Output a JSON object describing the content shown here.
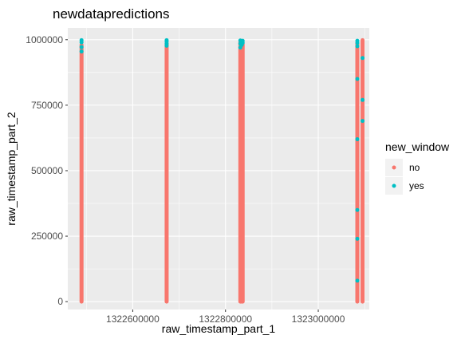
{
  "chart_data": {
    "type": "scatter",
    "title": "newdatapredictions",
    "xlabel": "raw_timestamp_part_1",
    "ylabel": "raw_timestamp_part_2",
    "xlim": [
      1322460000,
      1323110000
    ],
    "ylim": [
      -30000,
      1045000
    ],
    "x_ticks": [
      1322600000,
      1322800000,
      1323000000
    ],
    "x_tick_labels": [
      "1322600000",
      "1322800000",
      "1323000000"
    ],
    "y_ticks": [
      0,
      250000,
      500000,
      750000,
      1000000
    ],
    "y_tick_labels": [
      "0",
      "250000",
      "500000",
      "750000",
      "1000000"
    ],
    "grid": true,
    "legend": {
      "title": "new_window",
      "placement": "right",
      "entries": [
        {
          "label": "no",
          "color": "#F8766D"
        },
        {
          "label": "yes",
          "color": "#00BFC4"
        }
      ]
    },
    "series": [
      {
        "name": "no",
        "color": "#F8766D",
        "columns": [
          {
            "x": 1322489590,
            "y_min": 0,
            "y_max": 980000
          },
          {
            "x": 1322673100,
            "y_min": 0,
            "y_max": 985000
          },
          {
            "x": 1322832000,
            "y_min": 0,
            "y_max": 990000
          },
          {
            "x": 1322835000,
            "y_min": 0,
            "y_max": 985000
          },
          {
            "x": 1322837000,
            "y_min": 0,
            "y_max": 982000
          },
          {
            "x": 1323084200,
            "y_min": 0,
            "y_max": 985000
          },
          {
            "x": 1323095500,
            "y_min": 0,
            "y_max": 998000
          }
        ]
      },
      {
        "name": "yes",
        "color": "#00BFC4",
        "points": [
          {
            "x": 1322489590,
            "y": 998000
          },
          {
            "x": 1322489590,
            "y": 990000
          },
          {
            "x": 1322489590,
            "y": 972000
          },
          {
            "x": 1322489590,
            "y": 955000
          },
          {
            "x": 1322673100,
            "y": 998000
          },
          {
            "x": 1322673100,
            "y": 993000
          },
          {
            "x": 1322673100,
            "y": 985000
          },
          {
            "x": 1322673100,
            "y": 977000
          },
          {
            "x": 1322832000,
            "y": 997000
          },
          {
            "x": 1322832000,
            "y": 985000
          },
          {
            "x": 1322832000,
            "y": 970000
          },
          {
            "x": 1322835000,
            "y": 994000
          },
          {
            "x": 1322835000,
            "y": 980000
          },
          {
            "x": 1322837000,
            "y": 996000
          },
          {
            "x": 1322837000,
            "y": 988000
          },
          {
            "x": 1323084200,
            "y": 996000
          },
          {
            "x": 1323084200,
            "y": 988000
          },
          {
            "x": 1323084200,
            "y": 975000
          },
          {
            "x": 1323084200,
            "y": 850000
          },
          {
            "x": 1323084200,
            "y": 620000
          },
          {
            "x": 1323084200,
            "y": 350000
          },
          {
            "x": 1323084200,
            "y": 240000
          },
          {
            "x": 1323084200,
            "y": 80000
          },
          {
            "x": 1323095500,
            "y": 930000
          },
          {
            "x": 1323095500,
            "y": 770000
          },
          {
            "x": 1323095500,
            "y": 690000
          }
        ]
      }
    ]
  }
}
